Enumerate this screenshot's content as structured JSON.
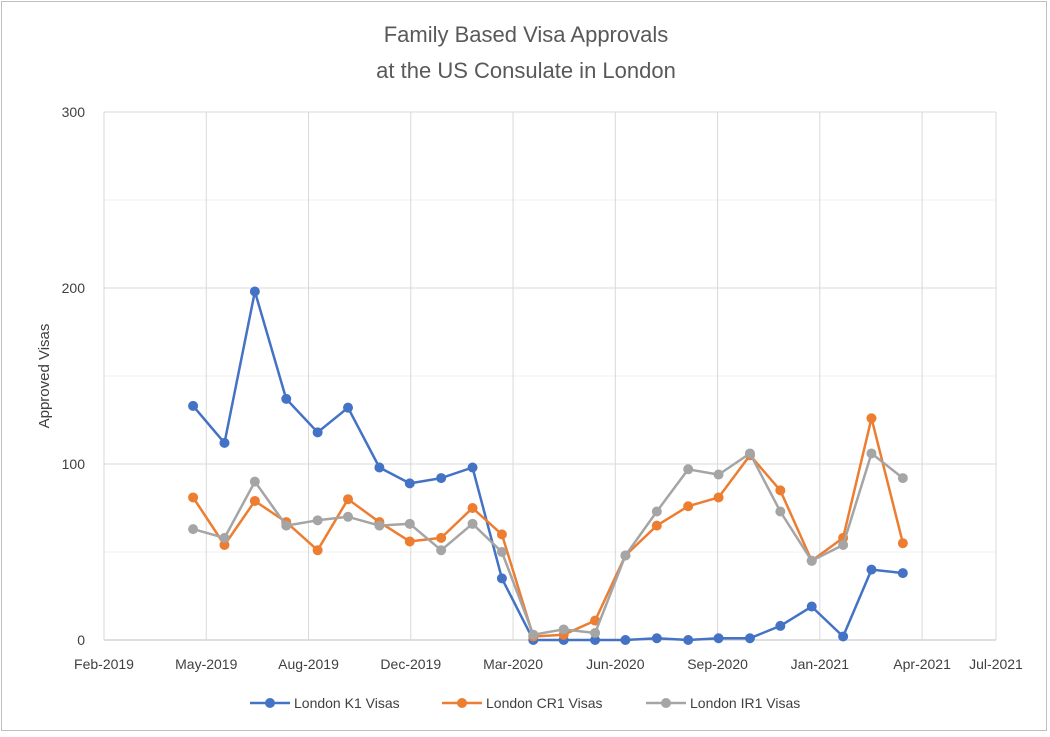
{
  "chart_data": {
    "type": "line",
    "title_lines": [
      "Family Based Visa Approvals",
      "at the US Consulate in London"
    ],
    "xlabel": "",
    "ylabel": "Approved Visas",
    "x_axis": {
      "type": "date",
      "min": "2019-02-01",
      "max": "2021-07-01",
      "tick_labels": [
        "Feb-2019",
        "May-2019",
        "Aug-2019",
        "Dec-2019",
        "Mar-2020",
        "Jun-2020",
        "Sep-2020",
        "Jan-2021",
        "Apr-2021",
        "Jul-2021"
      ],
      "ticks": [
        "2019-02-01",
        "2019-05-13",
        "2019-08-22",
        "2019-12-01",
        "2020-03-11",
        "2020-06-20",
        "2020-09-29",
        "2021-01-08",
        "2021-04-19",
        "2021-07-01"
      ]
    },
    "ylim": [
      0,
      300
    ],
    "y_ticks": [
      0,
      100,
      200,
      300
    ],
    "y_minor_gridlines": [
      50,
      150,
      250
    ],
    "grid": true,
    "legend_position": "bottom",
    "x": [
      "2019-04-30",
      "2019-05-31",
      "2019-06-30",
      "2019-07-31",
      "2019-08-31",
      "2019-09-30",
      "2019-10-31",
      "2019-11-30",
      "2019-12-31",
      "2020-01-31",
      "2020-02-29",
      "2020-03-31",
      "2020-04-30",
      "2020-05-31",
      "2020-06-30",
      "2020-07-31",
      "2020-08-31",
      "2020-09-30",
      "2020-10-31",
      "2020-11-30",
      "2020-12-31",
      "2021-01-31",
      "2021-02-28",
      "2021-03-31"
    ],
    "series": [
      {
        "name": "London K1 Visas",
        "color": "#4472C4",
        "values": [
          133,
          112,
          198,
          137,
          118,
          132,
          98,
          89,
          92,
          98,
          35,
          0,
          0,
          0,
          0,
          1,
          0,
          1,
          1,
          8,
          19,
          2,
          40,
          38
        ]
      },
      {
        "name": "London CR1 Visas",
        "color": "#ED7D31",
        "values": [
          81,
          54,
          79,
          67,
          51,
          80,
          67,
          56,
          58,
          75,
          60,
          2,
          3,
          11,
          48,
          65,
          76,
          81,
          105,
          85,
          45,
          58,
          126,
          55
        ]
      },
      {
        "name": "London IR1 Visas",
        "color": "#A5A5A5",
        "values": [
          63,
          58,
          90,
          65,
          68,
          70,
          65,
          66,
          51,
          66,
          50,
          3,
          6,
          4,
          48,
          73,
          97,
          94,
          106,
          73,
          45,
          54,
          106,
          92
        ]
      }
    ]
  }
}
